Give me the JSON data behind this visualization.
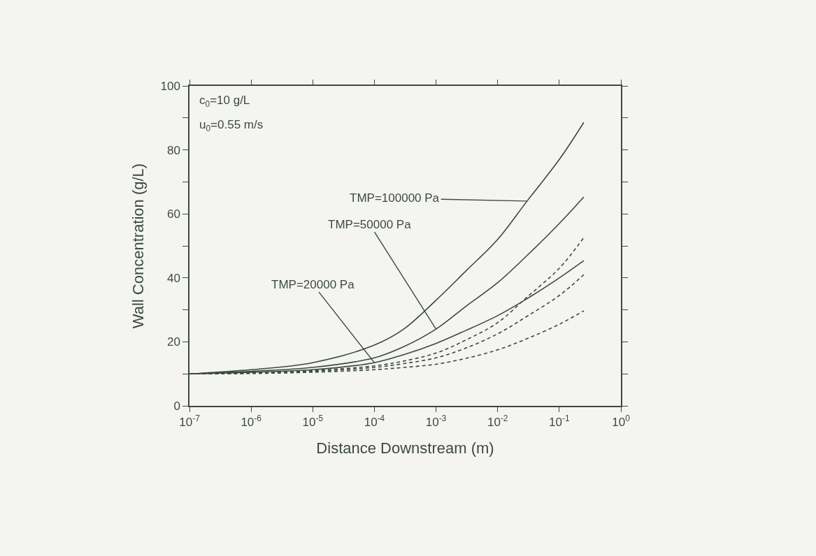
{
  "chart_data": {
    "type": "line",
    "xlabel": "Distance Downstream (m)",
    "ylabel": "Wall Concentration (g/L)",
    "log": "x",
    "grid": false,
    "marker": "none",
    "x": [
      1e-07,
      1e-06,
      1e-05,
      0.0001,
      0.0003,
      0.001,
      0.003,
      0.01,
      0.03,
      0.1,
      0.25
    ],
    "xlim": [
      1e-07,
      1
    ],
    "xticks": [
      {
        "value": 1e-07,
        "label": "10$^{-7}$"
      },
      {
        "value": 1e-06,
        "label": "10$^{-6}$"
      },
      {
        "value": 1e-05,
        "label": "10$^{-5}$"
      },
      {
        "value": 0.0001,
        "label": "10$^{-4}$"
      },
      {
        "value": 0.001,
        "label": "10$^{-3}$"
      },
      {
        "value": 0.01,
        "label": "10$^{-2}$"
      },
      {
        "value": 0.1,
        "label": "10$^{-1}$"
      },
      {
        "value": 1,
        "label": "10$^{0}$"
      }
    ],
    "ylim": [
      0,
      100
    ],
    "yticks": [
      0,
      20,
      40,
      60,
      80,
      100
    ],
    "series": [
      {
        "color": "#3c4a3c",
        "line_style": "solid",
        "values": [
          10,
          11.3,
          13.5,
          19,
          24,
          33,
          42,
          52,
          64,
          77,
          88.6
        ]
      },
      {
        "color": "#3c4a3c",
        "line_style": "solid",
        "values": [
          10,
          10.8,
          12,
          15,
          18.5,
          24,
          31,
          38.5,
          47,
          57,
          65.3
        ]
      },
      {
        "color": "#3c4a3c",
        "line_style": "solid",
        "values": [
          10,
          10.5,
          11.3,
          13.5,
          16,
          19.5,
          23.5,
          28.2,
          33.5,
          40,
          45.4
        ]
      },
      {
        "color": "#3c4a3c",
        "line_style": "dashed",
        "values": [
          10,
          10.3,
          11,
          12.5,
          14,
          16.5,
          20.5,
          26,
          34,
          43,
          52.6
        ]
      },
      {
        "color": "#3c4a3c",
        "line_style": "dashed",
        "values": [
          10,
          10.2,
          10.8,
          12,
          13.2,
          15,
          18,
          22.5,
          28,
          34.5,
          41
        ]
      },
      {
        "color": "#3c4a3c",
        "line_style": "dashed",
        "values": [
          10,
          10.1,
          10.5,
          11.3,
          12,
          13,
          14.8,
          17.5,
          21,
          25.5,
          29.7
        ]
      }
    ],
    "annotations": [
      "c$_{0}$=10 g/L",
      "u$_{0}$=0.55 m/s",
      {
        "text": "TMP=100000 Pa",
        "x": 0.03,
        "y": 64
      },
      {
        "text": "TMP=50000 Pa",
        "x": 0.001,
        "y": 24
      },
      {
        "text": "TMP=20000 Pa",
        "x": 0.0001,
        "y": 13.5
      }
    ]
  }
}
